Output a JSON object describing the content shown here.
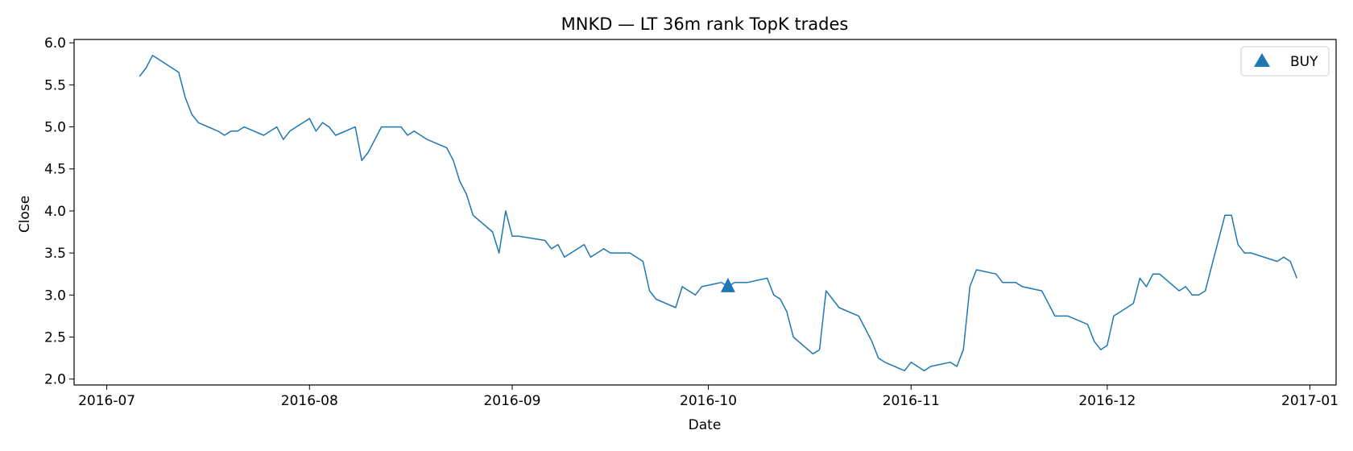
{
  "chart_data": {
    "type": "line",
    "title": "MNKD — LT 36m rank TopK trades",
    "xlabel": "Date",
    "ylabel": "Close",
    "xlim": [
      "2016-06-26",
      "2017-01-05"
    ],
    "ylim": [
      1.93,
      6.04
    ],
    "x_ticks": [
      "2016-07-01",
      "2016-08-01",
      "2016-09-01",
      "2016-10-01",
      "2016-11-01",
      "2016-12-01",
      "2017-01-01"
    ],
    "x_tick_labels": [
      "2016-07",
      "2016-08",
      "2016-09",
      "2016-10",
      "2016-11",
      "2016-12",
      "2017-01"
    ],
    "y_ticks": [
      2.0,
      2.5,
      3.0,
      3.5,
      4.0,
      4.5,
      5.0,
      5.5,
      6.0
    ],
    "y_tick_labels": [
      "2.0",
      "2.5",
      "3.0",
      "3.5",
      "4.0",
      "4.5",
      "5.0",
      "5.5",
      "6.0"
    ],
    "grid": false,
    "legend_position": "top-right",
    "line_color": "#1f77b4",
    "series": [
      {
        "x": [
          "2016-07-06",
          "2016-07-07",
          "2016-07-08",
          "2016-07-12",
          "2016-07-13",
          "2016-07-14",
          "2016-07-15",
          "2016-07-18",
          "2016-07-19",
          "2016-07-20",
          "2016-07-21",
          "2016-07-22",
          "2016-07-25",
          "2016-07-26",
          "2016-07-27",
          "2016-07-28",
          "2016-07-29",
          "2016-08-01",
          "2016-08-02",
          "2016-08-03",
          "2016-08-04",
          "2016-08-05",
          "2016-08-08",
          "2016-08-09",
          "2016-08-10",
          "2016-08-11",
          "2016-08-12",
          "2016-08-15",
          "2016-08-16",
          "2016-08-17",
          "2016-08-18",
          "2016-08-19",
          "2016-08-22",
          "2016-08-23",
          "2016-08-24",
          "2016-08-25",
          "2016-08-26",
          "2016-08-29",
          "2016-08-30",
          "2016-08-31",
          "2016-09-01",
          "2016-09-02",
          "2016-09-06",
          "2016-09-07",
          "2016-09-08",
          "2016-09-09",
          "2016-09-12",
          "2016-09-13",
          "2016-09-14",
          "2016-09-15",
          "2016-09-16",
          "2016-09-19",
          "2016-09-20",
          "2016-09-21",
          "2016-09-22",
          "2016-09-23",
          "2016-09-26",
          "2016-09-27",
          "2016-09-28",
          "2016-09-29",
          "2016-09-30",
          "2016-10-03",
          "2016-10-04",
          "2016-10-05",
          "2016-10-06",
          "2016-10-07",
          "2016-10-10",
          "2016-10-11",
          "2016-10-12",
          "2016-10-13",
          "2016-10-14",
          "2016-10-17",
          "2016-10-18",
          "2016-10-19",
          "2016-10-20",
          "2016-10-21",
          "2016-10-24",
          "2016-10-25",
          "2016-10-26",
          "2016-10-27",
          "2016-10-28",
          "2016-10-31",
          "2016-11-01",
          "2016-11-02",
          "2016-11-03",
          "2016-11-04",
          "2016-11-07",
          "2016-11-08",
          "2016-11-09",
          "2016-11-10",
          "2016-11-11",
          "2016-11-14",
          "2016-11-15",
          "2016-11-16",
          "2016-11-17",
          "2016-11-18",
          "2016-11-21",
          "2016-11-22",
          "2016-11-23",
          "2016-11-25",
          "2016-11-28",
          "2016-11-29",
          "2016-11-30",
          "2016-12-01",
          "2016-12-02",
          "2016-12-05",
          "2016-12-06",
          "2016-12-07",
          "2016-12-08",
          "2016-12-09",
          "2016-12-12",
          "2016-12-13",
          "2016-12-14",
          "2016-12-15",
          "2016-12-16",
          "2016-12-19",
          "2016-12-20",
          "2016-12-21",
          "2016-12-22",
          "2016-12-23",
          "2016-12-27",
          "2016-12-28",
          "2016-12-29",
          "2016-12-30"
        ],
        "y": [
          5.6,
          5.7,
          5.85,
          5.65,
          5.35,
          5.15,
          5.05,
          4.95,
          4.9,
          4.95,
          4.95,
          5.0,
          4.9,
          4.95,
          5.0,
          4.85,
          4.95,
          5.1,
          4.95,
          5.05,
          5.0,
          4.9,
          5.0,
          4.6,
          4.7,
          4.85,
          5.0,
          5.0,
          4.9,
          4.95,
          4.9,
          4.85,
          4.75,
          4.6,
          4.35,
          4.2,
          3.95,
          3.75,
          3.5,
          4.0,
          3.7,
          3.7,
          3.65,
          3.55,
          3.6,
          3.45,
          3.6,
          3.45,
          3.5,
          3.55,
          3.5,
          3.5,
          3.45,
          3.4,
          3.05,
          2.95,
          2.85,
          3.1,
          3.05,
          3.0,
          3.1,
          3.15,
          3.1,
          3.15,
          3.15,
          3.15,
          3.2,
          3.0,
          2.95,
          2.8,
          2.5,
          2.3,
          2.35,
          3.05,
          2.95,
          2.85,
          2.75,
          2.6,
          2.45,
          2.25,
          2.2,
          2.1,
          2.2,
          2.15,
          2.1,
          2.15,
          2.2,
          2.15,
          2.35,
          3.1,
          3.3,
          3.25,
          3.15,
          3.15,
          3.15,
          3.1,
          3.05,
          2.9,
          2.75,
          2.75,
          2.65,
          2.45,
          2.35,
          2.4,
          2.75,
          2.9,
          3.2,
          3.1,
          3.25,
          3.25,
          3.05,
          3.1,
          3.0,
          3.0,
          3.05,
          3.95,
          3.95,
          3.6,
          3.5,
          3.5,
          3.4,
          3.45,
          3.4,
          3.2
        ]
      }
    ],
    "markers": [
      {
        "label": "BUY",
        "x": "2016-10-04",
        "y": 3.1,
        "shape": "triangle-up",
        "color": "#1f77b4"
      }
    ]
  }
}
